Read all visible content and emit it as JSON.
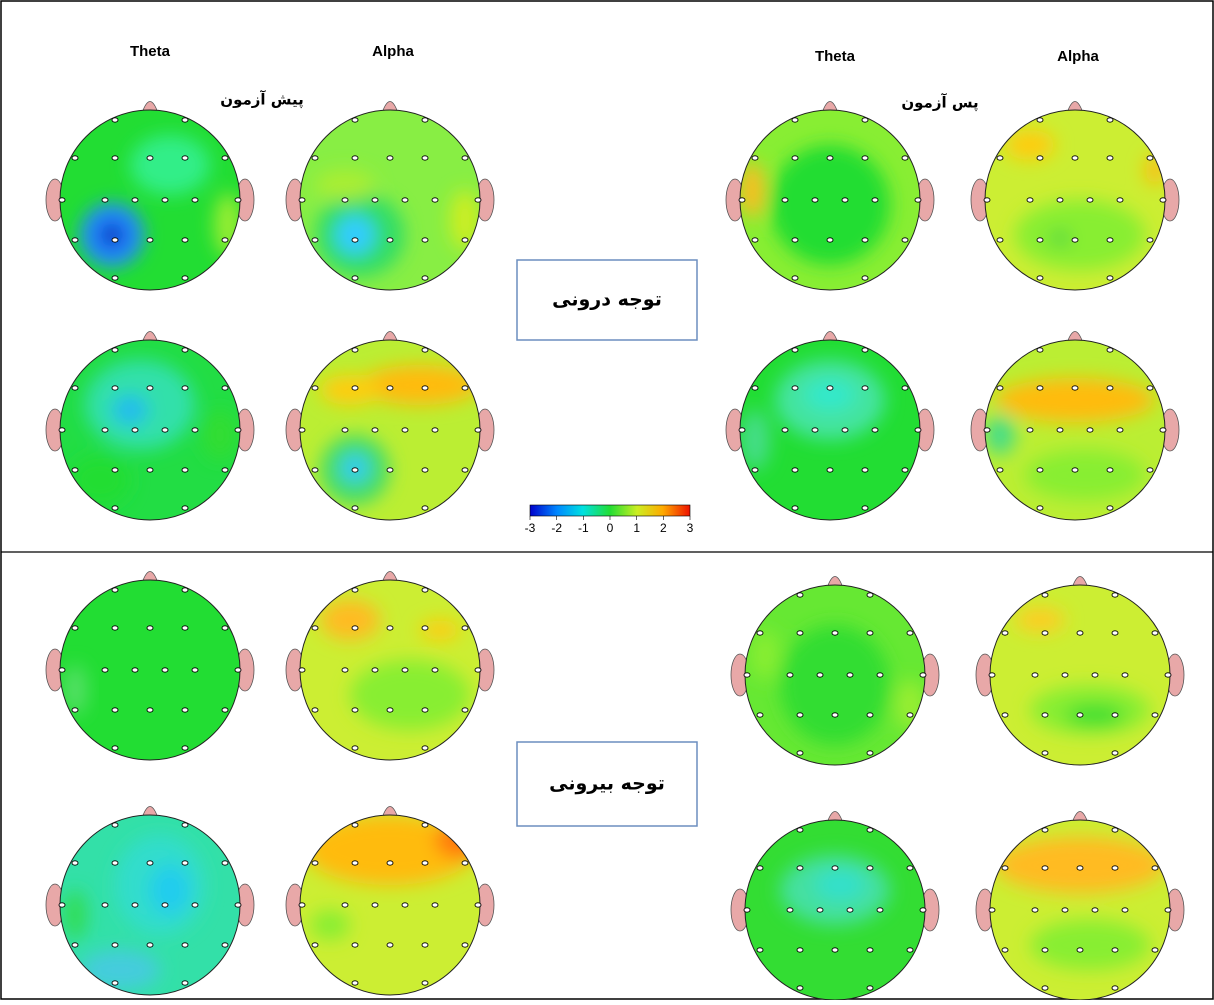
{
  "top": {
    "pre_label": "پیش آزمون",
    "post_label": "پس آزمون",
    "pre_headers": [
      "Theta",
      "Alpha"
    ],
    "post_headers": [
      "Theta",
      "Alpha"
    ],
    "box_label": "توجه درونی"
  },
  "bottom": {
    "box_label": "توجه بیرونی"
  },
  "colorbar": {
    "lim": [
      -3,
      3
    ],
    "ticks": [
      -3,
      -2,
      -1,
      0,
      1,
      2,
      3
    ]
  }
}
